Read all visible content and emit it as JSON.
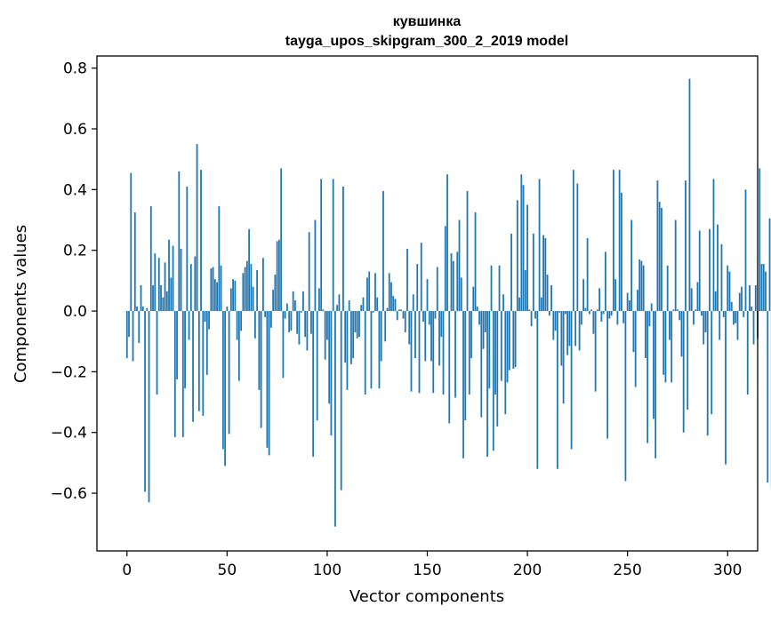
{
  "chart_data": {
    "type": "bar",
    "title": "кувшинка",
    "subtitle": "tayga_upos_skipgram_300_2_2019 model",
    "xlabel": "Vector components",
    "ylabel": "Components values",
    "xlim": [
      -15,
      315
    ],
    "ylim": [
      -0.79,
      0.84
    ],
    "xticks": [
      0,
      50,
      100,
      150,
      200,
      250,
      300
    ],
    "xtick_labels": [
      "0",
      "50",
      "100",
      "150",
      "200",
      "250",
      "300"
    ],
    "yticks": [
      -0.6,
      -0.4,
      -0.2,
      0.0,
      0.2,
      0.4,
      0.6,
      0.8
    ],
    "ytick_labels": [
      "−0.6",
      "−0.4",
      "−0.2",
      "0.0",
      "0.2",
      "0.4",
      "0.6",
      "0.8"
    ],
    "bar_color": "#1f77b4",
    "values": [
      -0.155,
      -0.085,
      0.455,
      -0.165,
      0.325,
      0.015,
      -0.105,
      0.085,
      0.015,
      -0.595,
      0.01,
      -0.63,
      0.345,
      0.085,
      0.19,
      -0.275,
      0.175,
      0.085,
      0.045,
      0.16,
      0.065,
      0.235,
      0.11,
      0.215,
      -0.415,
      -0.225,
      0.46,
      0.205,
      -0.415,
      -0.255,
      0.41,
      -0.095,
      0.155,
      -0.365,
      0.18,
      0.55,
      -0.33,
      0.465,
      -0.345,
      -0.035,
      -0.21,
      -0.06,
      0.14,
      0.145,
      0.105,
      0.095,
      0.345,
      0.15,
      -0.455,
      -0.51,
      0.015,
      -0.405,
      0.075,
      0.105,
      0.1,
      -0.095,
      -0.23,
      -0.065,
      0.125,
      0.145,
      0.165,
      0.27,
      0.155,
      0.08,
      -0.09,
      0.135,
      -0.26,
      -0.385,
      0.175,
      -0.02,
      -0.45,
      -0.475,
      -0.055,
      0.07,
      0.12,
      0.23,
      0.235,
      0.47,
      -0.22,
      -0.025,
      0.025,
      -0.07,
      -0.065,
      0.065,
      0.035,
      -0.075,
      -0.11,
      -0.005,
      0.065,
      -0.085,
      -0.13,
      0.26,
      -0.075,
      -0.48,
      0.3,
      -0.36,
      0.075,
      0.435,
      0.005,
      -0.16,
      -0.095,
      -0.305,
      -0.41,
      0.435,
      -0.71,
      0.02,
      0.055,
      -0.59,
      0.41,
      -0.17,
      -0.26,
      0.035,
      -0.175,
      -0.155,
      -0.07,
      -0.09,
      -0.085,
      0.02,
      0.045,
      -0.275,
      0.11,
      0.13,
      -0.255,
      -0.005,
      0.125,
      0.045,
      -0.255,
      -0.165,
      0.395,
      -0.1,
      0.01,
      0.125,
      0.095,
      0.05,
      0.04,
      -0.03,
      0.005,
      0.005,
      -0.025,
      -0.07,
      0.205,
      -0.11,
      -0.265,
      0.055,
      -0.155,
      0.155,
      -0.27,
      0.225,
      -0.035,
      -0.165,
      0.105,
      -0.045,
      -0.165,
      -0.27,
      -0.025,
      0.145,
      -0.18,
      -0.085,
      -0.275,
      0.28,
      0.45,
      -0.37,
      0.19,
      0.165,
      -0.285,
      0.195,
      0.3,
      0.11,
      -0.485,
      -0.36,
      0.395,
      -0.275,
      -0.155,
      0.08,
      0.325,
      0.015,
      -0.045,
      -0.35,
      -0.125,
      -0.07,
      -0.48,
      -0.255,
      0.15,
      -0.46,
      -0.275,
      -0.38,
      0.15,
      -0.23,
      0.055,
      -0.34,
      -0.235,
      -0.195,
      0.255,
      -0.19,
      -0.185,
      0.365,
      0.045,
      0.45,
      0.415,
      0.135,
      0.35,
      0.005,
      -0.05,
      0.255,
      -0.025,
      -0.52,
      0.435,
      0.045,
      0.25,
      0.24,
      0.12,
      -0.015,
      0.085,
      -0.095,
      -0.065,
      -0.52,
      -0.005,
      -0.18,
      -0.305,
      -0.01,
      -0.145,
      -0.115,
      -0.455,
      0.465,
      -0.115,
      0.42,
      -0.13,
      -0.045,
      0.105,
      0.01,
      0.24,
      -0.01,
      0.005,
      -0.075,
      -0.265,
      0.005,
      0.075,
      -0.035,
      -0.01,
      0.195,
      -0.42,
      -0.025,
      -0.015,
      0.465,
      0.105,
      -0.045,
      0.465,
      0.39,
      -0.04,
      -0.56,
      0.06,
      0.035,
      0.3,
      -0.135,
      -0.25,
      0.07,
      0.17,
      0.165,
      0.15,
      -0.155,
      -0.435,
      -0.05,
      0.025,
      -0.355,
      -0.485,
      0.43,
      0.36,
      0.34,
      -0.21,
      -0.235,
      0.15,
      -0.095,
      -0.235,
      0.005,
      0.3,
      0.005,
      -0.03,
      -0.15,
      -0.4,
      0.43,
      -0.325,
      0.765,
      0.075,
      -0.045,
      0.005,
      0.095,
      0.265,
      -0.015,
      -0.11,
      -0.07,
      -0.41,
      0.27,
      -0.34,
      0.435,
      0.065,
      0.285,
      -0.095,
      0.22,
      -0.02,
      -0.505,
      0.15,
      0.13,
      0.03,
      -0.045,
      -0.04,
      -0.095,
      0.06,
      0.08,
      -0.02,
      0.4,
      -0.275,
      0.085,
      0.015,
      -0.11,
      0.085,
      -0.09,
      0.47,
      0.155,
      0.155,
      0.13,
      -0.565,
      0.305,
      -0.585,
      0.005
    ]
  }
}
